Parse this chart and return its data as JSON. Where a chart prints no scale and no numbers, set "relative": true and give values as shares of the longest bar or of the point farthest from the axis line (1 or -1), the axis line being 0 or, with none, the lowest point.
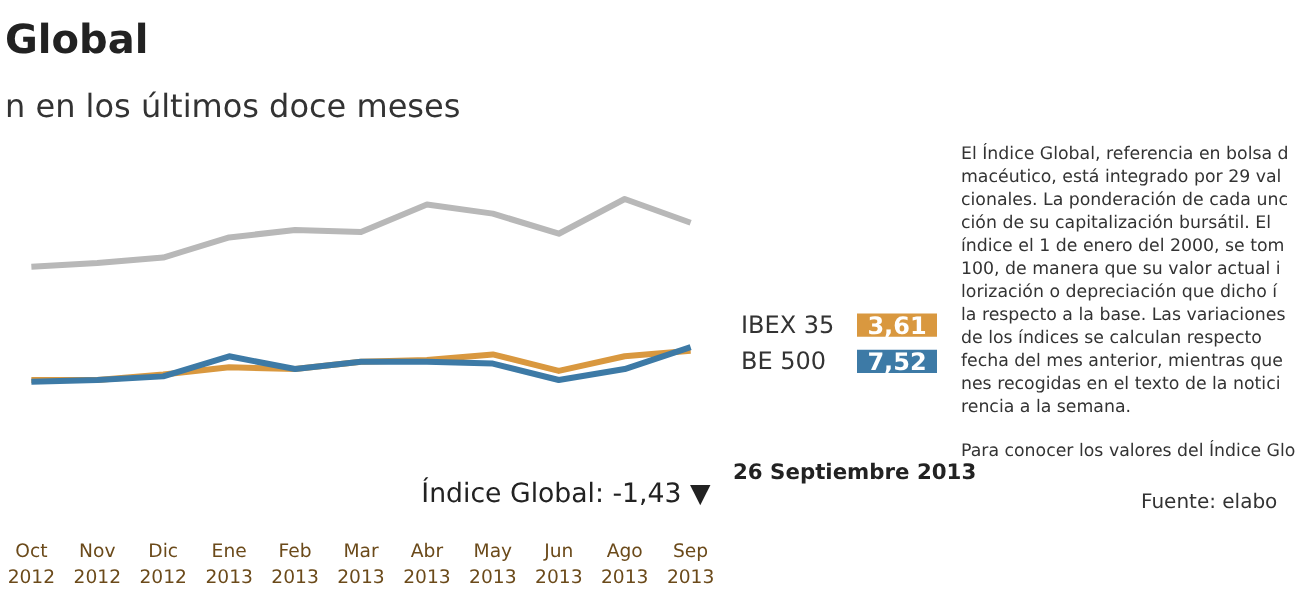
{
  "chart_data": {
    "type": "line",
    "title": "Global",
    "subtitle": "n en los últimos doce meses",
    "relative": true,
    "categories": [
      "Oct 2012",
      "Nov 2012",
      "Dic 2012",
      "Ene 2013",
      "Feb 2013",
      "Mar 2013",
      "Abr 2013",
      "May 2013",
      "Jun 2013",
      "Ago 2013",
      "Sep 2013"
    ],
    "series": [
      {
        "color": "#b8b8b8",
        "values": [
          0.63,
          0.65,
          0.68,
          0.79,
          0.83,
          0.82,
          0.97,
          0.92,
          0.81,
          1.0,
          0.87
        ]
      },
      {
        "name": "IBEX 35",
        "color": "#d9983f",
        "values": [
          0.01,
          0.01,
          0.04,
          0.08,
          0.07,
          0.11,
          0.12,
          0.15,
          0.06,
          0.14,
          0.17
        ]
      },
      {
        "name": "BE 500",
        "color": "#3d7aa6",
        "values": [
          0.0,
          0.01,
          0.03,
          0.14,
          0.07,
          0.11,
          0.11,
          0.1,
          0.01,
          0.07,
          0.19
        ]
      }
    ],
    "annotations": [
      "Índice Global: -1,43 ▼",
      "3,61",
      "7,52",
      "26 Septiembre 2013",
      "El Índice Global, referencia en bolsa d\nmacéutico, está integrado por 29 val\ncionales. La ponderación de cada unc\nción de su capitalización bursátil. El\níndice el 1 de enero del 2000, se tom\n100, de manera que su valor actual i\nlorización o depreciación que dicho í\nla respecto a la base. Las variaciones\nde los índices se calculan respecto\nfecha del mes anterior, mientras que\nnes recogidas en el texto de la notici\nrencia a la semana.",
      "Para conocer los valores del Índice Glo",
      "Fuente: elabo"
    ],
    "legend": "right",
    "line_style": "solid",
    "marker": "none"
  }
}
